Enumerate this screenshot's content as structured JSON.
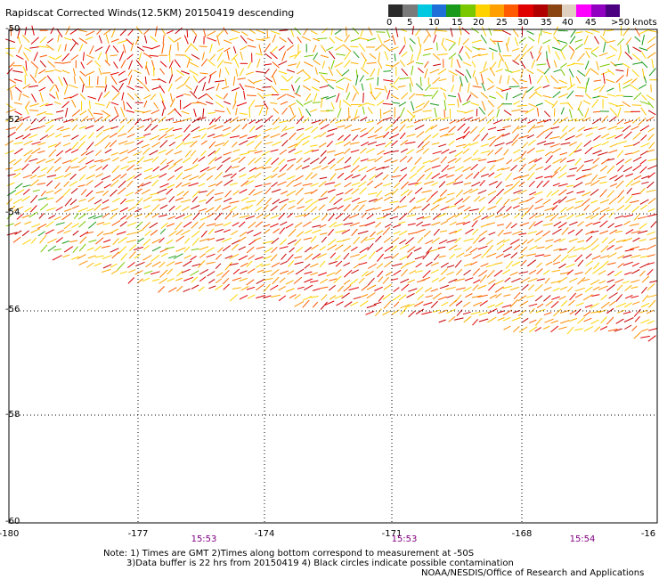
{
  "title": "Rapidscat Corrected Winds(12.5KM) 20150419 descending",
  "colorbar": {
    "colors": [
      "#2a2a2a",
      "#7a7a7a",
      "#00c8e0",
      "#1e6fd8",
      "#1a9a1a",
      "#7ac800",
      "#ffd200",
      "#ffa000",
      "#ff5a00",
      "#e00000",
      "#b00000",
      "#8b4513",
      "#e0d0c0",
      "#ff00ff",
      "#9000c0",
      "#4b0082"
    ],
    "labels": [
      "0",
      "5",
      "10",
      "15",
      "20",
      "25",
      "30",
      "35",
      "40",
      "45",
      ">50 knots"
    ]
  },
  "lat_labels": [
    "-50",
    "-52",
    "-54",
    "-56",
    "-58",
    "-60"
  ],
  "lon_labels": [
    "-180",
    "-177",
    "-174",
    "-171",
    "-168",
    "-16"
  ],
  "times": [
    "15:53",
    "15:53",
    "15:54"
  ],
  "notes": {
    "line1": "Note: 1) Times are GMT 2)Times along bottom correspond to measurement at -50S",
    "line2": "3)Data buffer is 22 hrs from 20150419 4) Black circles indicate possible contamination",
    "credit": "NOAA/NESDIS/Office of Research and Applications"
  }
}
